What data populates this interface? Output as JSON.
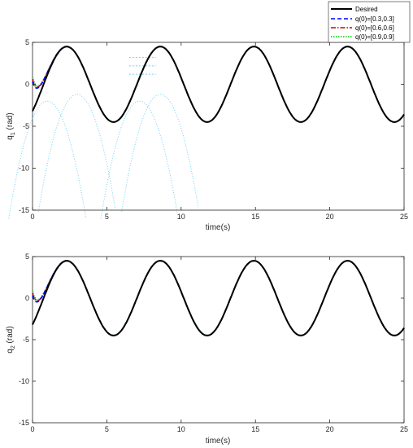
{
  "chart_data": [
    {
      "type": "line",
      "panel": "top",
      "xlabel": "time(s)",
      "ylabel": "q",
      "ylabel_sub": "1",
      "ylabel_unit": " (rad)",
      "xlim": [
        0,
        25
      ],
      "ylim": [
        -15,
        5
      ],
      "xticks": [
        "0",
        "5",
        "10",
        "15",
        "20",
        "25"
      ],
      "yticks": [
        "5",
        "0",
        "-5",
        "-10",
        "-15"
      ],
      "grid": false,
      "legend": {
        "placement": "top-right",
        "entries": [
          "Desired",
          "q(0)=[0.3,0.3]",
          "q(0)=[0.6,0.6]",
          "q(0)=[0.9,0.9]"
        ]
      },
      "series_styles": [
        {
          "color": "#000000",
          "dash": "solid",
          "width": 2
        },
        {
          "color": "#0000ff",
          "dash": "dashed",
          "width": 1.6
        },
        {
          "color": "#cc0000",
          "dash": "dashdot",
          "width": 1.6
        },
        {
          "color": "#33dd33",
          "dash": "dotted",
          "width": 2
        }
      ],
      "signal": {
        "amplitude": 4.5,
        "period": 6.3,
        "peak_times": [
          2.3,
          8.6,
          14.9,
          21.2
        ],
        "trough_times": [
          5.5,
          11.8,
          18.1,
          24.4
        ]
      },
      "desired_start_value": -3.2,
      "faint_artifact_color": "#33bbee"
    },
    {
      "type": "line",
      "panel": "bottom",
      "xlabel": "time(s)",
      "ylabel": "q",
      "ylabel_sub": "2",
      "ylabel_unit": " (rad)",
      "xlim": [
        0,
        25
      ],
      "ylim": [
        -15,
        5
      ],
      "xticks": [
        "0",
        "5",
        "10",
        "15",
        "20",
        "25"
      ],
      "yticks": [
        "5",
        "0",
        "-5",
        "-10",
        "-15"
      ],
      "grid": false,
      "signal": {
        "amplitude": 4.5,
        "period": 6.3,
        "peak_times": [
          2.3,
          8.6,
          14.9,
          21.2
        ],
        "trough_times": [
          5.5,
          11.8,
          18.1,
          24.4
        ]
      },
      "desired_start_value": -3.2
    }
  ]
}
